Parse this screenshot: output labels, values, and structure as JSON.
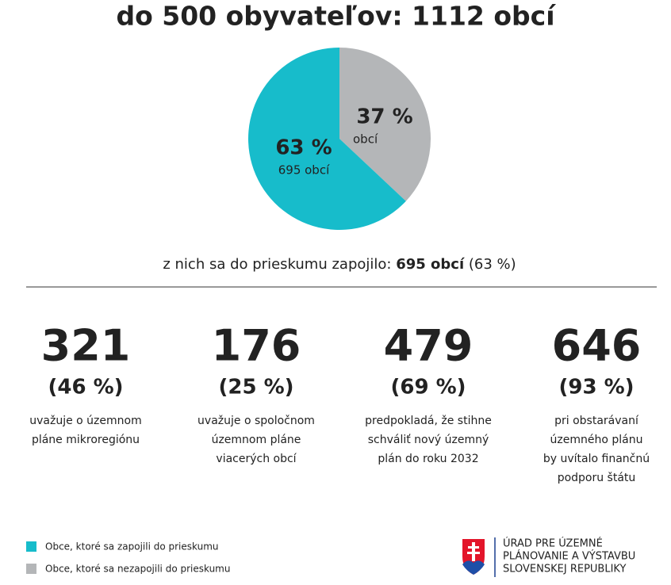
{
  "chart_data": {
    "type": "pie",
    "title": "do 500 obyvateľov: 1112 obcí",
    "categories": [
      "Obce, ktoré sa zapojili do prieskumu",
      "Obce, ktoré sa nezapojili do prieskumu"
    ],
    "values": [
      63,
      37
    ],
    "value_labels": [
      "63 %",
      "37 %"
    ],
    "slice_notes": [
      "695 obcí",
      "obcí"
    ],
    "colors": [
      "#17bccb",
      "#b4b6b8"
    ]
  },
  "summary": {
    "prefix": "z nich sa do prieskumu zapojilo:",
    "bold": "695 obcí",
    "suffix": "(63 %)"
  },
  "stats": [
    {
      "count": 321,
      "share": "(46 %)",
      "lines": [
        "uvažuje o územnom",
        "pláne mikroregiónu"
      ]
    },
    {
      "count": 176,
      "share": "(25 %)",
      "lines": [
        "uvažuje o spoločnom",
        "územnom pláne",
        "viacerých obcí"
      ]
    },
    {
      "count": 479,
      "share": "(69 %)",
      "lines": [
        "predpokladá, že stihne",
        "schváliť nový územný",
        "plán do roku 2032"
      ]
    },
    {
      "count": 646,
      "share": "(93 %)",
      "lines": [
        "pri obstarávaní",
        "územného plánu",
        "by uvítalo finančnú",
        "podporu štátu"
      ]
    }
  ],
  "logo": {
    "lines": [
      "ÚRAD PRE ÚZEMNÉ",
      "PLÁNOVANIE A VÝSTAVBU",
      "SLOVENSKEJ REPUBLIKY"
    ]
  }
}
